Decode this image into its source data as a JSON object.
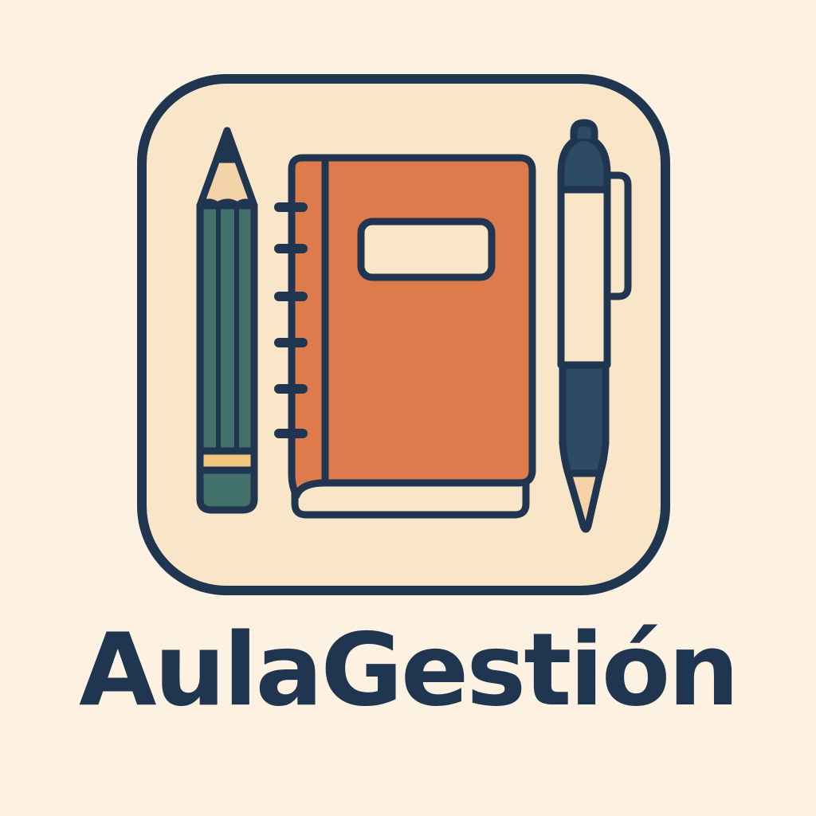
{
  "brand": {
    "name": "AulaGestión"
  },
  "icons": {
    "app_icon": "app-icon",
    "pencil": "pencil-icon",
    "notebook": "notebook-icon",
    "pen": "pen-icon"
  },
  "colors": {
    "background": "#fdf1e2",
    "icon_fill": "#f9e6c8",
    "outline": "#1f3550",
    "pencil_body": "#42706a",
    "pencil_wood": "#f4d3a8",
    "pencil_band": "#f3c681",
    "notebook_cover": "#dd7b4c",
    "notebook_label": "#f9e6c8",
    "pen_body": "#f9e6c8",
    "pen_cap": "#2d4a66",
    "text": "#1f3550"
  }
}
